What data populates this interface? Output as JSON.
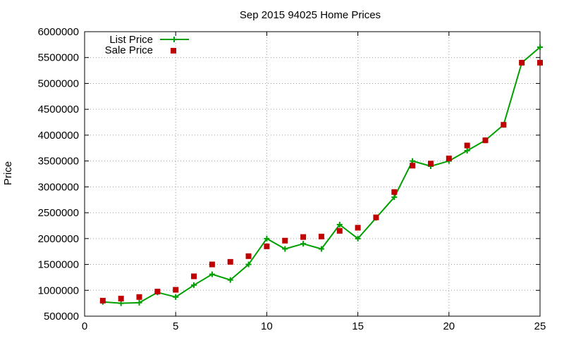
{
  "chart_data": {
    "type": "line",
    "title": "Sep 2015 94025 Home Prices",
    "xlabel": "",
    "ylabel": "Price",
    "xlim": [
      0,
      25
    ],
    "ylim": [
      500000,
      6000000
    ],
    "x_ticks": [
      0,
      5,
      10,
      15,
      20,
      25
    ],
    "y_ticks": [
      500000,
      1000000,
      1500000,
      2000000,
      2500000,
      3000000,
      3500000,
      4000000,
      4500000,
      5000000,
      5500000,
      6000000
    ],
    "grid": true,
    "legend_position": "top-left",
    "x": [
      1,
      2,
      3,
      4,
      5,
      6,
      7,
      8,
      9,
      10,
      11,
      12,
      13,
      14,
      15,
      16,
      17,
      18,
      19,
      20,
      21,
      22,
      23,
      24,
      25
    ],
    "series": [
      {
        "name": "List Price",
        "style": "line-with-plus-markers",
        "color": "#00a000",
        "values": [
          775000,
          750000,
          760000,
          960000,
          870000,
          1100000,
          1310000,
          1200000,
          1500000,
          2000000,
          1800000,
          1900000,
          1800000,
          2270000,
          2000000,
          2400000,
          2800000,
          3500000,
          3400000,
          3500000,
          3700000,
          3900000,
          4200000,
          5400000,
          5700000
        ]
      },
      {
        "name": "Sale Price",
        "style": "square-markers",
        "color": "#c00000",
        "values": [
          800000,
          840000,
          870000,
          975000,
          1010000,
          1270000,
          1500000,
          1550000,
          1660000,
          1850000,
          1960000,
          2030000,
          2040000,
          2150000,
          2210000,
          2410000,
          2900000,
          3410000,
          3450000,
          3550000,
          3800000,
          3900000,
          4200000,
          5400000,
          5400000
        ]
      }
    ]
  }
}
